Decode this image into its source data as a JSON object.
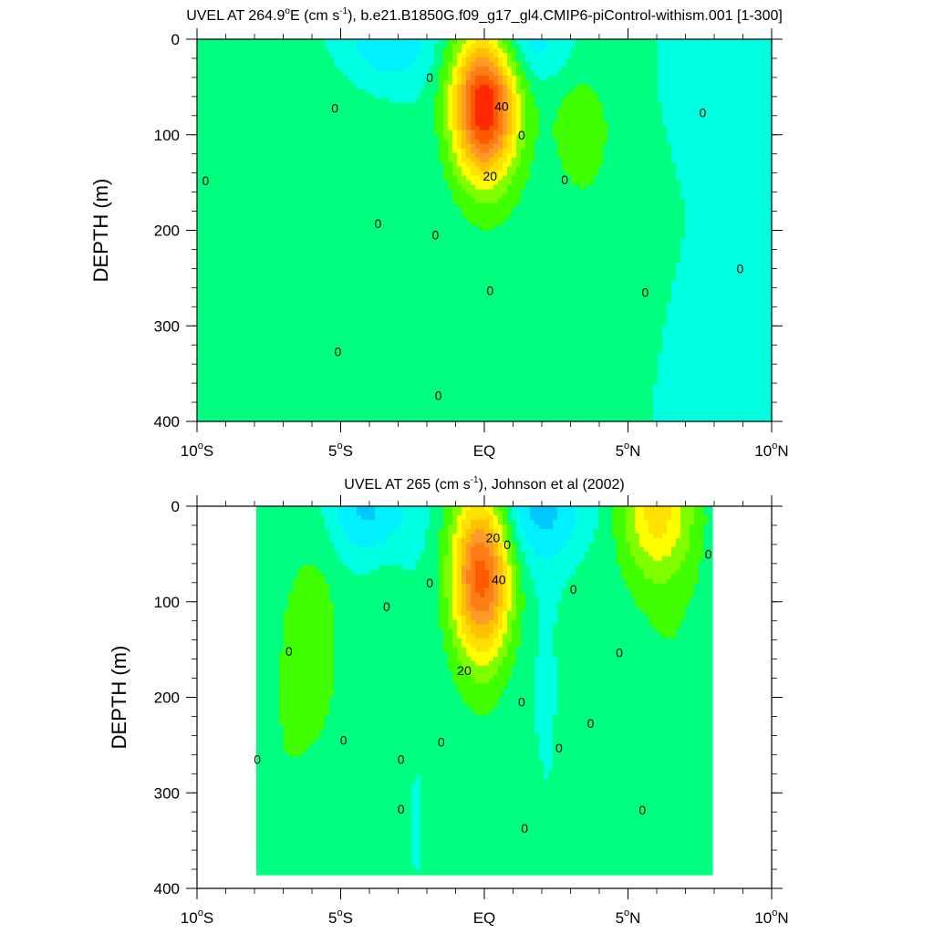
{
  "chart_data": [
    {
      "type": "heatmap",
      "title_main": "UVEL AT 264.9",
      "title_deg": "o",
      "title_mid": "E (cm s",
      "title_exp": "-1",
      "title_tail": "), b.e21.B1850G.f09_g17_gl4.CMIP6-piControl-withism.001 [1-300]",
      "ylabel": "DEPTH (m)",
      "xlabel": "",
      "x_range": [
        -10,
        10
      ],
      "y_range": [
        400,
        0
      ],
      "x_ticks": [
        {
          "value": -10,
          "label": "10",
          "deg": "o",
          "suffix": "S"
        },
        {
          "value": -5,
          "label": "5",
          "deg": "o",
          "suffix": "S"
        },
        {
          "value": 0,
          "label": "EQ",
          "deg": "",
          "suffix": ""
        },
        {
          "value": 5,
          "label": "5",
          "deg": "o",
          "suffix": "N"
        },
        {
          "value": 10,
          "label": "10",
          "deg": "o",
          "suffix": "N"
        }
      ],
      "y_ticks": [
        {
          "value": 0,
          "label": "0"
        },
        {
          "value": 100,
          "label": "100"
        },
        {
          "value": 200,
          "label": "200"
        },
        {
          "value": 300,
          "label": "300"
        },
        {
          "value": 400,
          "label": "400"
        }
      ],
      "contour_interval": 5,
      "data_lon_range": [
        -10,
        10
      ],
      "max_data_depth": 400,
      "features": [
        {
          "lon": 0,
          "depth": 70,
          "value": 50,
          "sx": 0.8,
          "sy": 55
        },
        {
          "lon": -5.2,
          "depth": 180,
          "value": 4,
          "sx": 1.8,
          "sy": 130
        },
        {
          "lon": 3.7,
          "depth": 180,
          "value": 4,
          "sx": 1.5,
          "sy": 150
        },
        {
          "lon": 3.3,
          "depth": 90,
          "value": 6,
          "sx": 0.6,
          "sy": 35
        },
        {
          "lon": 0.2,
          "depth": 320,
          "value": 4,
          "sx": 1.5,
          "sy": 90
        },
        {
          "lon": -9.3,
          "depth": 45,
          "value": 3,
          "sx": 0.9,
          "sy": 25
        },
        {
          "lon": -3.4,
          "depth": 5,
          "value": -10,
          "sx": 1.1,
          "sy": 30
        },
        {
          "lon": 1.5,
          "depth": 5,
          "value": -9,
          "sx": 1.0,
          "sy": 28
        },
        {
          "lon": 8.9,
          "depth": 40,
          "value": -5,
          "sx": 1.5,
          "sy": 60
        },
        {
          "lon": -2.2,
          "depth": 260,
          "value": -1,
          "sx": 0.7,
          "sy": 150
        },
        {
          "lon": 7.2,
          "depth": 350,
          "value": -1,
          "sx": 1.3,
          "sy": 100
        }
      ],
      "contour_labels": [
        {
          "lon": 0.6,
          "depth": 70,
          "text": "40"
        },
        {
          "lon": 0.2,
          "depth": 143,
          "text": "20"
        },
        {
          "lon": -9.7,
          "depth": 148,
          "text": "0"
        },
        {
          "lon": -5.2,
          "depth": 72,
          "text": "0"
        },
        {
          "lon": -3.7,
          "depth": 193,
          "text": "0"
        },
        {
          "lon": -1.9,
          "depth": 40,
          "text": "0"
        },
        {
          "lon": -1.7,
          "depth": 205,
          "text": "0"
        },
        {
          "lon": 1.3,
          "depth": 100,
          "text": "0"
        },
        {
          "lon": 2.8,
          "depth": 147,
          "text": "0"
        },
        {
          "lon": 7.6,
          "depth": 77,
          "text": "0"
        },
        {
          "lon": 8.9,
          "depth": 240,
          "text": "0"
        },
        {
          "lon": 5.6,
          "depth": 265,
          "text": "0"
        },
        {
          "lon": 0.2,
          "depth": 263,
          "text": "0"
        },
        {
          "lon": -5.1,
          "depth": 327,
          "text": "0"
        },
        {
          "lon": -1.6,
          "depth": 373,
          "text": "0"
        }
      ]
    },
    {
      "type": "heatmap",
      "title_main": "UVEL AT 265 (cm s",
      "title_deg": "",
      "title_mid": "",
      "title_exp": "-1",
      "title_tail": "), Johnson et al (2002)",
      "ylabel": "DEPTH (m)",
      "xlabel": "",
      "x_range": [
        -10,
        10
      ],
      "y_range": [
        400,
        0
      ],
      "x_ticks": [
        {
          "value": -10,
          "label": "10",
          "deg": "o",
          "suffix": "S"
        },
        {
          "value": -5,
          "label": "5",
          "deg": "o",
          "suffix": "S"
        },
        {
          "value": 0,
          "label": "EQ",
          "deg": "",
          "suffix": ""
        },
        {
          "value": 5,
          "label": "5",
          "deg": "o",
          "suffix": "N"
        },
        {
          "value": 10,
          "label": "10",
          "deg": "o",
          "suffix": "N"
        }
      ],
      "y_ticks": [
        {
          "value": 0,
          "label": "0"
        },
        {
          "value": 100,
          "label": "100"
        },
        {
          "value": 200,
          "label": "200"
        },
        {
          "value": 300,
          "label": "300"
        },
        {
          "value": 400,
          "label": "400"
        }
      ],
      "contour_interval": 5,
      "data_lon_range": [
        -8,
        8
      ],
      "max_data_depth": 385,
      "features": [
        {
          "lon": -0.1,
          "depth": 70,
          "value": 43,
          "sx": 0.75,
          "sy": 65
        },
        {
          "lon": 6.0,
          "depth": 5,
          "value": 20,
          "sx": 0.9,
          "sy": 50
        },
        {
          "lon": -5.8,
          "depth": 150,
          "value": 7,
          "sx": 0.7,
          "sy": 110
        },
        {
          "lon": -7.0,
          "depth": 220,
          "value": 4,
          "sx": 0.6,
          "sy": 160
        },
        {
          "lon": -3.5,
          "depth": 230,
          "value": 4,
          "sx": 0.6,
          "sy": 180
        },
        {
          "lon": 3.5,
          "depth": 230,
          "value": 4,
          "sx": 0.7,
          "sy": 160
        },
        {
          "lon": 6.5,
          "depth": 220,
          "value": 5,
          "sx": 1.3,
          "sy": 180
        },
        {
          "lon": 0,
          "depth": 320,
          "value": 4,
          "sx": 1.5,
          "sy": 80
        },
        {
          "lon": -4.0,
          "depth": 5,
          "value": -12,
          "sx": 1.0,
          "sy": 35
        },
        {
          "lon": 1.8,
          "depth": 5,
          "value": -12,
          "sx": 1.3,
          "sy": 40
        },
        {
          "lon": -2.5,
          "depth": 320,
          "value": -2,
          "sx": 0.6,
          "sy": 70
        },
        {
          "lon": 2.3,
          "depth": 260,
          "value": -2,
          "sx": 0.6,
          "sy": 130
        },
        {
          "lon": -5.5,
          "depth": 300,
          "value": -1,
          "sx": 0.7,
          "sy": 50
        }
      ],
      "contour_labels": [
        {
          "lon": 0.5,
          "depth": 77,
          "text": "40"
        },
        {
          "lon": 0.3,
          "depth": 33,
          "text": "20"
        },
        {
          "lon": -0.7,
          "depth": 172,
          "text": "20"
        },
        {
          "lon": 0.8,
          "depth": 40,
          "text": "0"
        },
        {
          "lon": 7.8,
          "depth": 50,
          "text": "0"
        },
        {
          "lon": -6.8,
          "depth": 152,
          "text": "0"
        },
        {
          "lon": -3.4,
          "depth": 105,
          "text": "0"
        },
        {
          "lon": -1.9,
          "depth": 80,
          "text": "0"
        },
        {
          "lon": 3.1,
          "depth": 87,
          "text": "0"
        },
        {
          "lon": 4.7,
          "depth": 153,
          "text": "0"
        },
        {
          "lon": 1.3,
          "depth": 205,
          "text": "0"
        },
        {
          "lon": 3.7,
          "depth": 227,
          "text": "0"
        },
        {
          "lon": -7.9,
          "depth": 265,
          "text": "0"
        },
        {
          "lon": -4.9,
          "depth": 245,
          "text": "0"
        },
        {
          "lon": -2.9,
          "depth": 265,
          "text": "0"
        },
        {
          "lon": -1.5,
          "depth": 247,
          "text": "0"
        },
        {
          "lon": 2.6,
          "depth": 253,
          "text": "0"
        },
        {
          "lon": -2.9,
          "depth": 317,
          "text": "0"
        },
        {
          "lon": 1.4,
          "depth": 337,
          "text": "0"
        },
        {
          "lon": 5.5,
          "depth": 318,
          "text": "0"
        }
      ]
    }
  ],
  "colors": {
    "palette": [
      "#0050ff",
      "#0096ff",
      "#00c8ff",
      "#00f0ff",
      "#00ffe0",
      "#00ff80",
      "#40ff00",
      "#80ff00",
      "#ffff00",
      "#ffe000",
      "#ffc000",
      "#ff9c28",
      "#ff7d14",
      "#ff5a00",
      "#ff2800"
    ],
    "contour_line": "#000000",
    "background": "#ffffff"
  }
}
